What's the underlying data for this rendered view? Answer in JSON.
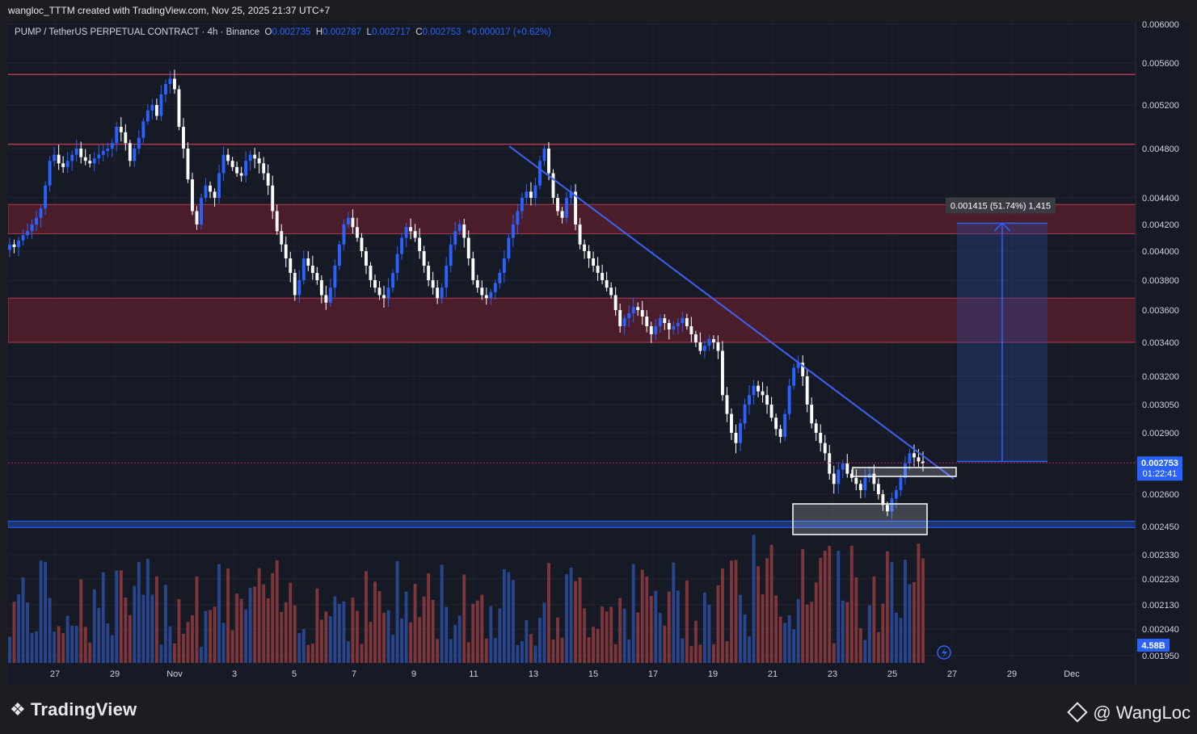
{
  "header": {
    "author_line": "wangloc_TTTM created with TradingView.com, Nov 25, 2025 21:37 UTC+7"
  },
  "legend": {
    "symbol": "PUMP / TetherUS PERPETUAL CONTRACT · 4h · Binance",
    "o_label": "O",
    "o_value": "0.002735",
    "h_label": "H",
    "h_value": "0.002787",
    "l_label": "L",
    "l_value": "0.002717",
    "c_label": "C",
    "c_value": "0.002753",
    "change": "+0.000017 (+0.62%)"
  },
  "footer": {
    "brand": "TradingView",
    "watermark": "@ WangLoc"
  },
  "colors": {
    "background": "#161a25",
    "up_candle": "#2962ff",
    "down_candle": "#ffffff",
    "resistance_zone": "#5d1f2e",
    "support_line": "#2962ff",
    "price_line": "#c2185b"
  },
  "chart_data": {
    "type": "candlestick",
    "price_labels": [
      "0.006000",
      "0.005600",
      "0.005200",
      "0.004800",
      "0.004400",
      "0.004200",
      "0.004000",
      "0.003800",
      "0.003600",
      "0.003400",
      "0.003200",
      "0.003050",
      "0.002900",
      "0.002600",
      "0.002450",
      "0.002330",
      "0.002230",
      "0.002130",
      "0.002040",
      "0.001950"
    ],
    "price_ticks": [
      0.006,
      0.0056,
      0.0052,
      0.0048,
      0.0044,
      0.0042,
      0.004,
      0.0038,
      0.0036,
      0.0034,
      0.0032,
      0.00305,
      0.0029,
      0.0026,
      0.00245,
      0.00233,
      0.00223,
      0.00213,
      0.00204,
      0.00195
    ],
    "x_labels": [
      "27",
      "29",
      "Nov",
      "3",
      "5",
      "7",
      "9",
      "11",
      "13",
      "15",
      "17",
      "19",
      "21",
      "23",
      "25",
      "27",
      "29",
      "Dec"
    ],
    "current_price": "0.002753",
    "countdown": "01:22:41",
    "volume_label": "4.58B",
    "measure_label": "0.001415 (51.74%) 1,415",
    "target_price": 0.00421,
    "entry_price": 0.00276,
    "zones": [
      {
        "name": "resistance-top",
        "from": 0.00413,
        "to": 0.00435
      },
      {
        "name": "resistance-mid",
        "from": 0.0034,
        "to": 0.00368
      }
    ],
    "levels": [
      {
        "name": "line-5500",
        "price": 0.00549
      },
      {
        "name": "line-4850",
        "price": 0.00484
      },
      {
        "name": "support-2460",
        "price": 0.00246
      }
    ],
    "closes": [
      0.00405,
      0.00403,
      0.00408,
      0.00412,
      0.00415,
      0.0042,
      0.00425,
      0.00432,
      0.0045,
      0.0047,
      0.00475,
      0.00468,
      0.00465,
      0.0047,
      0.00475,
      0.0048,
      0.00473,
      0.0047,
      0.00468,
      0.00472,
      0.00475,
      0.00478,
      0.0048,
      0.00485,
      0.005,
      0.00495,
      0.00485,
      0.0047,
      0.0048,
      0.0049,
      0.00505,
      0.00515,
      0.0052,
      0.0051,
      0.0053,
      0.0054,
      0.00545,
      0.00535,
      0.005,
      0.0048,
      0.00455,
      0.0043,
      0.0042,
      0.0044,
      0.0045,
      0.00445,
      0.0044,
      0.0046,
      0.00475,
      0.0047,
      0.00465,
      0.0046,
      0.00458,
      0.0047,
      0.00475,
      0.00472,
      0.00468,
      0.0046,
      0.0045,
      0.0043,
      0.00415,
      0.00405,
      0.00395,
      0.00385,
      0.0037,
      0.0038,
      0.00395,
      0.0039,
      0.00385,
      0.0038,
      0.0037,
      0.00365,
      0.00375,
      0.0039,
      0.00405,
      0.0042,
      0.00425,
      0.00418,
      0.0041,
      0.004,
      0.0039,
      0.0038,
      0.00375,
      0.0037,
      0.00368,
      0.00375,
      0.00385,
      0.00398,
      0.0041,
      0.00418,
      0.00415,
      0.0041,
      0.004,
      0.0039,
      0.0038,
      0.00375,
      0.00368,
      0.00375,
      0.0039,
      0.00405,
      0.00415,
      0.0042,
      0.0041,
      0.00395,
      0.0038,
      0.00375,
      0.0037,
      0.00368,
      0.00372,
      0.00378,
      0.00385,
      0.00395,
      0.0041,
      0.0042,
      0.0043,
      0.0044,
      0.00445,
      0.0044,
      0.0045,
      0.0047,
      0.0048,
      0.0046,
      0.0044,
      0.0043,
      0.00425,
      0.0044,
      0.00445,
      0.0042,
      0.00405,
      0.004,
      0.00395,
      0.0039,
      0.00385,
      0.0038,
      0.00375,
      0.0037,
      0.0036,
      0.0035,
      0.00355,
      0.00358,
      0.00362,
      0.0036,
      0.00356,
      0.0035,
      0.00345,
      0.0035,
      0.00355,
      0.00352,
      0.00348,
      0.0035,
      0.00352,
      0.00355,
      0.0035,
      0.00345,
      0.0034,
      0.00335,
      0.00338,
      0.00342,
      0.0034,
      0.00335,
      0.0031,
      0.003,
      0.0029,
      0.00285,
      0.00295,
      0.00305,
      0.0031,
      0.00315,
      0.00312,
      0.0031,
      0.00305,
      0.00298,
      0.00292,
      0.00288,
      0.003,
      0.00315,
      0.00325,
      0.00328,
      0.0032,
      0.00305,
      0.00295,
      0.0029,
      0.00285,
      0.0028,
      0.0027,
      0.00265,
      0.00272,
      0.00275,
      0.0027,
      0.00268,
      0.00265,
      0.00262,
      0.00268,
      0.0027,
      0.00265,
      0.0026,
      0.00255,
      0.00252,
      0.00258,
      0.00262,
      0.00268,
      0.00275,
      0.0028,
      0.00278,
      0.00276,
      0.00275
    ]
  }
}
